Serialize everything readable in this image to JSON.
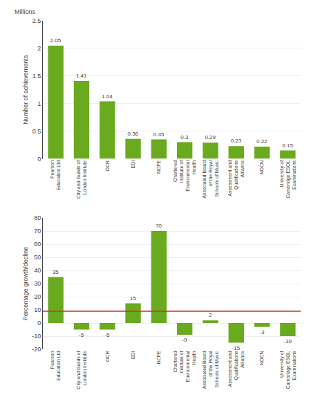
{
  "chart_data": [
    {
      "type": "bar",
      "categories": [
        "Pearson\nEducation Ltd",
        "City and Guilds of\nLondon Institute",
        "OCR",
        "EDI",
        "NCFE",
        "Chartered\nInstitute of\nEnvironmental\nHealth",
        "Associated Board\nof the Royal\nSchools of Music",
        "Assessment and\nQualifications\nAlliance",
        "NOCN",
        "University of\nCambridge ESOL\nExaminations"
      ],
      "values": [
        2.05,
        1.41,
        1.04,
        0.36,
        0.35,
        0.3,
        0.29,
        0.23,
        0.22,
        0.15
      ],
      "color": "#6aaa1f",
      "ylabel": "Number of achievements",
      "annotations": [
        "Millions"
      ],
      "ylim": [
        0,
        2.5
      ],
      "yticks": [
        0,
        0.5,
        1,
        1.5,
        2,
        2.5
      ],
      "grid": true,
      "data_labels": true
    },
    {
      "type": "bar",
      "categories": [
        "Pearson\nEducation Ltd",
        "City and Guilds of\nLondon Institute",
        "OCR",
        "EDI",
        "NCFE",
        "Chartered\nInstitute of\nEnvironmental\nHealth",
        "Associated Board\nof the Royal\nSchools of Music",
        "Assessment and\nQualifications\nAlliance",
        "NOCN",
        "University of\nCambridge ESOL\nExaminations"
      ],
      "values": [
        35,
        -5,
        -5,
        15,
        70,
        -9,
        2,
        -15,
        -3,
        -10
      ],
      "color": "#6aaa1f",
      "ylabel": "Percentage growth/decline",
      "average_line": {
        "value": 9,
        "color": "#cc3333"
      },
      "ylim": [
        -20,
        80
      ],
      "yticks": [
        -20,
        -10,
        0,
        10,
        20,
        30,
        40,
        50,
        60,
        70,
        80
      ],
      "grid": true,
      "data_labels": true
    }
  ]
}
